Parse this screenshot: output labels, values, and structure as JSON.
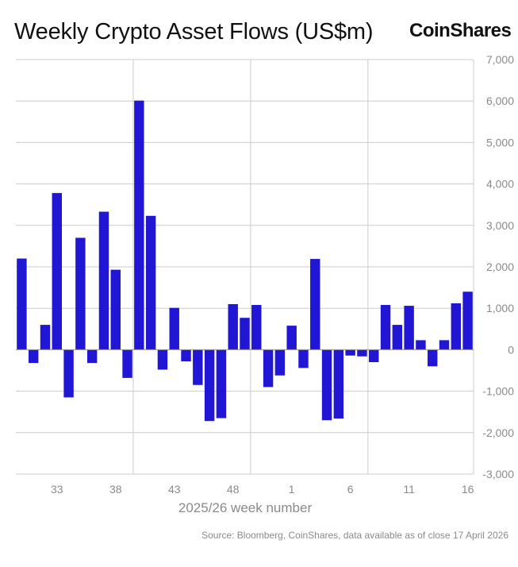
{
  "header": {
    "title": "Weekly Crypto Asset Flows (US$m)",
    "brand": "CoinShares"
  },
  "footer": {
    "source": "Source: Bloomberg, CoinShares, data available as of close 17 April 2026"
  },
  "colors": {
    "bar": "#2016d4",
    "grid": "#cccccc"
  },
  "chart_data": {
    "type": "bar",
    "title": "Weekly Crypto Asset Flows (US$m)",
    "xlabel": "2025/26 week number",
    "ylabel": "",
    "ylim": [
      -3000,
      7000
    ],
    "y_ticks": [
      -3000,
      -2000,
      -1000,
      0,
      1000,
      2000,
      3000,
      4000,
      5000,
      6000,
      7000
    ],
    "y_tick_labels": [
      "-3,000",
      "-2,000",
      "-1,000",
      "0",
      "1,000",
      "2,000",
      "3,000",
      "4,000",
      "5,000",
      "6,000",
      "7,000"
    ],
    "x_tick_labels": [
      "33",
      "38",
      "43",
      "48",
      "1",
      "6",
      "11",
      "16"
    ],
    "grid": true,
    "values": [
      2200,
      -320,
      600,
      3780,
      -1150,
      2700,
      -320,
      3330,
      1930,
      -680,
      6010,
      3230,
      -480,
      1010,
      -280,
      -850,
      -1720,
      -1650,
      1100,
      770,
      1080,
      -900,
      -620,
      580,
      -440,
      2190,
      -1700,
      -1660,
      -140,
      -160,
      -300,
      1080,
      600,
      1060,
      230,
      -400,
      230,
      1120,
      1400
    ]
  }
}
